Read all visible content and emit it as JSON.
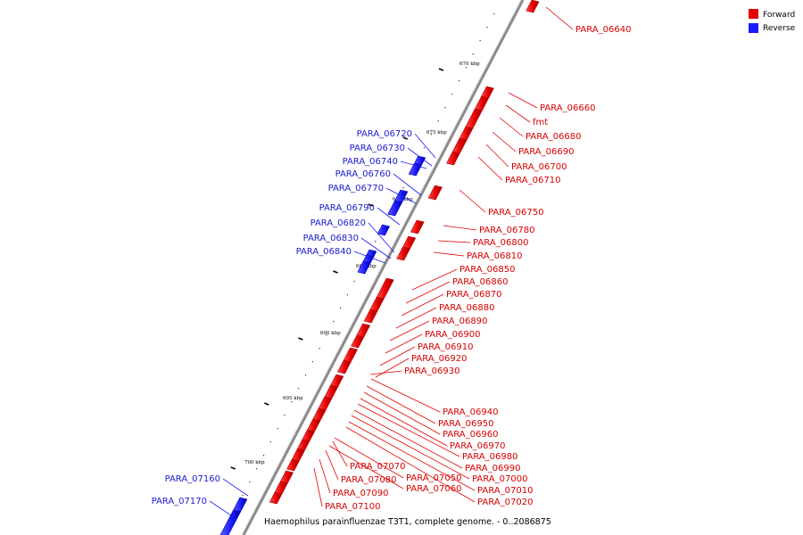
{
  "title": "Haemophilus parainfluenzae T3T1, complete genome. - 0..2086875",
  "legend": [
    {
      "label": "Forward",
      "color": "#e60000"
    },
    {
      "label": "Reverse",
      "color": "#1a1aff"
    }
  ],
  "colors": {
    "forward": "#e60000",
    "reverse": "#1a1aff",
    "backbone": "#888888"
  },
  "ticks": [
    "670 kbp",
    "675 kbp",
    "680 kbp",
    "685 kbp",
    "690 kbp",
    "695 kbp",
    "700 kbp"
  ],
  "forward_genes": [
    "PARA_06640",
    "PARA_06660",
    "fmt",
    "PARA_06680",
    "PARA_06690",
    "PARA_06700",
    "PARA_06710",
    "PARA_06750",
    "PARA_06780",
    "PARA_06800",
    "PARA_06810",
    "PARA_06850",
    "PARA_06860",
    "PARA_06870",
    "PARA_06880",
    "PARA_06890",
    "PARA_06900",
    "PARA_06910",
    "PARA_06920",
    "PARA_06930",
    "PARA_06940",
    "PARA_06950",
    "PARA_06960",
    "PARA_06970",
    "PARA_06980",
    "PARA_06990",
    "PARA_07000",
    "PARA_07010",
    "PARA_07020",
    "PARA_07050",
    "PARA_07060",
    "PARA_07070",
    "PARA_07080",
    "PARA_07090",
    "PARA_07100"
  ],
  "reverse_genes": [
    "PARA_06720",
    "PARA_06730",
    "PARA_06740",
    "PARA_06760",
    "PARA_06770",
    "PARA_06790",
    "PARA_06820",
    "PARA_06830",
    "PARA_06840",
    "PARA_07160",
    "PARA_07170"
  ]
}
